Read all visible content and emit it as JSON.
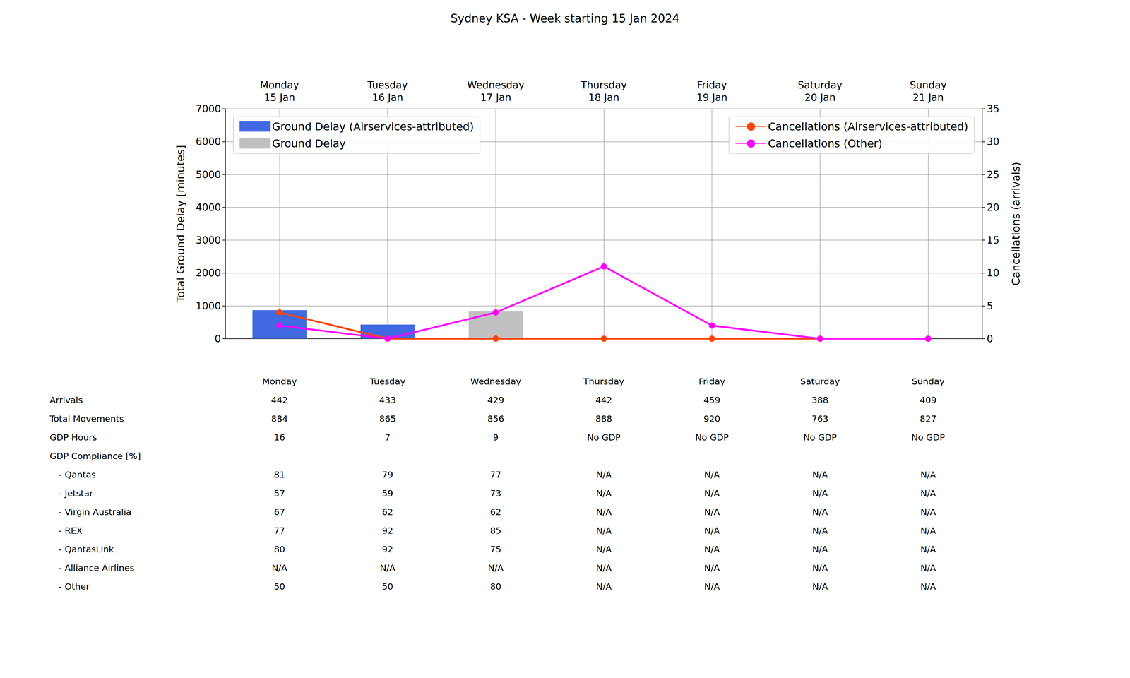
{
  "chart_data": {
    "type": "bar",
    "title": "Sydney KSA - Week starting 15 Jan 2024",
    "categories": [
      "Monday\n15 Jan",
      "Tuesday\n16 Jan",
      "Wednesday\n17 Jan",
      "Thursday\n18 Jan",
      "Friday\n19 Jan",
      "Saturday\n20 Jan",
      "Sunday\n21 Jan"
    ],
    "y_label": "Total Ground Delay [minutes]",
    "y2_label": "Cancellations (arrivals)",
    "ylim": [
      0,
      7000
    ],
    "yticks": [
      0,
      1000,
      2000,
      3000,
      4000,
      5000,
      6000,
      7000
    ],
    "y2lim": [
      0,
      35
    ],
    "y2ticks": [
      0,
      5,
      10,
      15,
      20,
      25,
      30,
      35
    ],
    "grid": true,
    "legend": "top",
    "series": [
      {
        "name": "Ground Delay",
        "type": "bar",
        "color": "#c0c0c0",
        "values": [
          0,
          0,
          830,
          0,
          0,
          0,
          0
        ]
      },
      {
        "name": "Ground Delay (Airservices-attributed)",
        "type": "bar",
        "color": "#4169e1",
        "values": [
          870,
          430,
          0,
          0,
          0,
          0,
          0
        ]
      },
      {
        "name": "Cancellations (Airservices-attributed)",
        "type": "line",
        "axis": "y2",
        "color": "#ff4500",
        "marker": "circle",
        "values": [
          4,
          0,
          0,
          0,
          0,
          0,
          0
        ]
      },
      {
        "name": "Cancellations (Other)",
        "type": "line",
        "axis": "y2",
        "color": "#ff00ff",
        "marker": "circle",
        "values": [
          2,
          0,
          4,
          11,
          2,
          0,
          0
        ]
      }
    ]
  },
  "table": {
    "columns": [
      "Monday",
      "Tuesday",
      "Wednesday",
      "Thursday",
      "Friday",
      "Saturday",
      "Sunday"
    ],
    "rows": [
      {
        "label": "Arrivals",
        "cells": [
          442,
          433,
          429,
          442,
          459,
          388,
          409
        ]
      },
      {
        "label": "Total Movements",
        "cells": [
          884,
          865,
          856,
          888,
          920,
          763,
          827
        ]
      },
      {
        "label": "GDP Hours",
        "cells": [
          16,
          7,
          9,
          "No GDP",
          "No GDP",
          "No GDP",
          "No GDP"
        ]
      },
      {
        "label": "GDP Compliance [%]",
        "cells": []
      },
      {
        "label": "- Qantas",
        "sub": true,
        "cells": [
          81,
          79,
          77,
          "N/A",
          "N/A",
          "N/A",
          "N/A"
        ]
      },
      {
        "label": "- Jetstar",
        "sub": true,
        "cells": [
          57,
          59,
          73,
          "N/A",
          "N/A",
          "N/A",
          "N/A"
        ]
      },
      {
        "label": "- Virgin Australia",
        "sub": true,
        "cells": [
          67,
          62,
          62,
          "N/A",
          "N/A",
          "N/A",
          "N/A"
        ]
      },
      {
        "label": "- REX",
        "sub": true,
        "cells": [
          77,
          92,
          85,
          "N/A",
          "N/A",
          "N/A",
          "N/A"
        ]
      },
      {
        "label": "- QantasLink",
        "sub": true,
        "cells": [
          80,
          92,
          75,
          "N/A",
          "N/A",
          "N/A",
          "N/A"
        ]
      },
      {
        "label": "- Alliance Airlines",
        "sub": true,
        "cells": [
          "N/A",
          "N/A",
          "N/A",
          "N/A",
          "N/A",
          "N/A",
          "N/A"
        ]
      },
      {
        "label": "- Other",
        "sub": true,
        "cells": [
          50,
          50,
          80,
          "N/A",
          "N/A",
          "N/A",
          "N/A"
        ]
      }
    ]
  }
}
